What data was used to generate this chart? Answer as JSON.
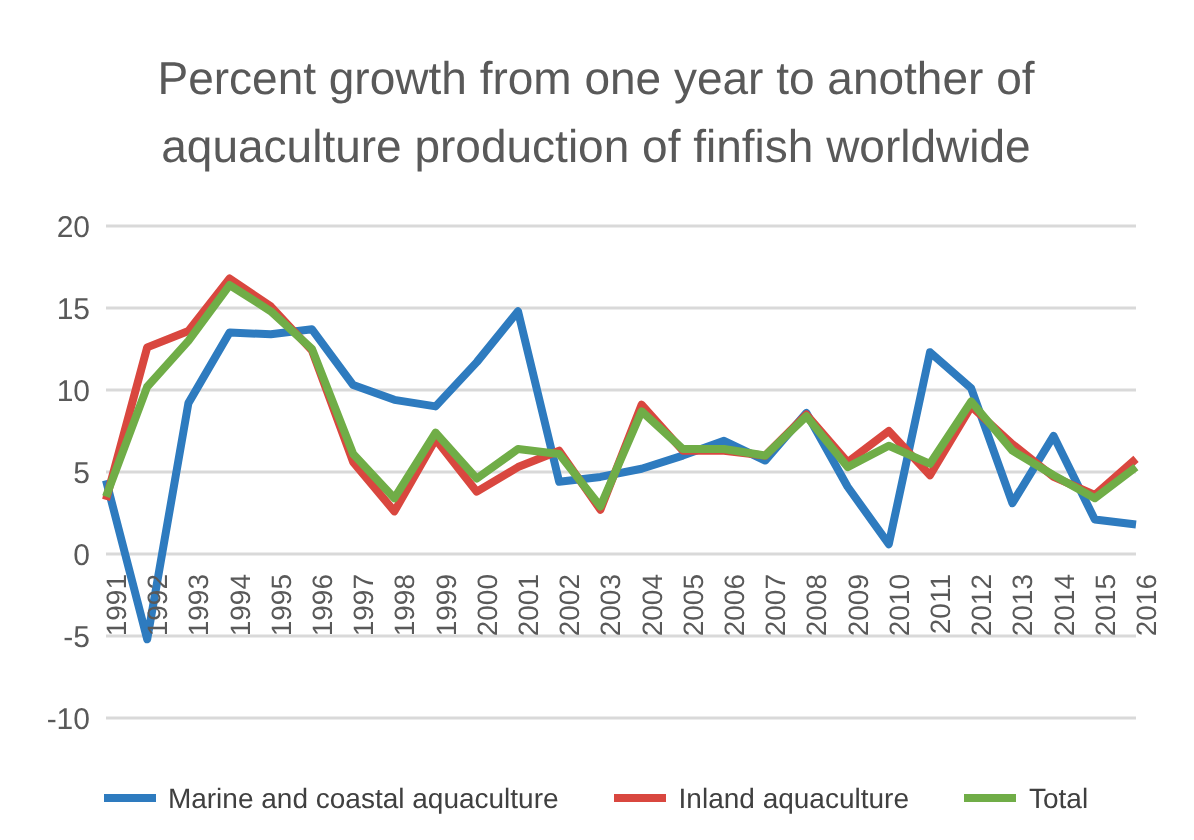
{
  "chart_data": {
    "type": "line",
    "title": "Percent growth from one year to another of aquaculture production of finfish worldwide",
    "categories": [
      "1991",
      "1992",
      "1993",
      "1994",
      "1995",
      "1996",
      "1997",
      "1998",
      "1999",
      "2000",
      "2001",
      "2002",
      "2003",
      "2004",
      "2005",
      "2006",
      "2007",
      "2008",
      "2009",
      "2010",
      "2011",
      "2012",
      "2013",
      "2014",
      "2015",
      "2016"
    ],
    "series": [
      {
        "name": "Marine and coastal aquaculture",
        "color": "#2e7bbf",
        "values": [
          4.5,
          -5.2,
          9.2,
          13.5,
          13.4,
          13.7,
          10.3,
          9.4,
          9.0,
          11.7,
          14.8,
          4.4,
          4.7,
          5.2,
          6.0,
          6.9,
          5.7,
          8.6,
          4.1,
          0.6,
          12.3,
          10.1,
          3.1,
          7.2,
          2.1,
          1.8
        ]
      },
      {
        "name": "Inland aquaculture",
        "color": "#d9473f",
        "values": [
          3.3,
          12.6,
          13.6,
          16.8,
          15.1,
          12.4,
          5.6,
          2.6,
          7.0,
          3.8,
          5.3,
          6.3,
          2.7,
          9.1,
          6.3,
          6.3,
          6.0,
          8.5,
          5.6,
          7.5,
          4.8,
          9.0,
          6.7,
          4.7,
          3.6,
          5.8
        ]
      },
      {
        "name": "Total",
        "color": "#70ad47",
        "values": [
          3.5,
          10.2,
          13.0,
          16.4,
          14.8,
          12.5,
          6.1,
          3.4,
          7.4,
          4.6,
          6.4,
          6.1,
          2.9,
          8.7,
          6.4,
          6.4,
          6.0,
          8.4,
          5.3,
          6.6,
          5.5,
          9.3,
          6.3,
          4.8,
          3.4,
          5.3
        ]
      }
    ],
    "ylim": [
      -10,
      20
    ],
    "yticks": [
      -10,
      -5,
      0,
      5,
      10,
      15,
      20
    ],
    "grid": "y",
    "legend": "bottom",
    "marker": "none",
    "line_style": "solid"
  }
}
